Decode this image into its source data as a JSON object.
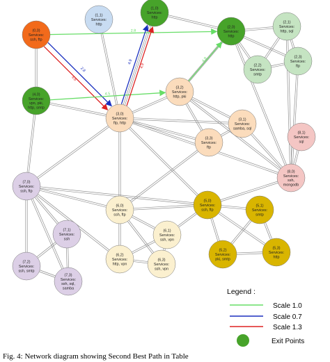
{
  "colors": {
    "red_group": "#f26a1b",
    "blue_group": "#c8dcf2",
    "green_exit": "#47a32a",
    "light_green_group": "#c5e4c2",
    "peach_group": "#fbdcbc",
    "pink_group": "#f4c6c4",
    "lavender_group": "#dccfe6",
    "cream_group": "#fbf0cf",
    "yellow_group": "#d9b500",
    "scale_1_0": "#66dd66",
    "scale_0_7": "#1a2fbf",
    "scale_1_3": "#dd2222",
    "edge": "#8f8f8f"
  },
  "nodes": [
    {
      "id": "0_0",
      "lines": [
        "(0,0)",
        "Services:",
        "ssh, ftp"
      ],
      "color": "red_group"
    },
    {
      "id": "1_1",
      "lines": [
        "(1,1)",
        "Services:",
        "http"
      ],
      "color": "blue_group"
    },
    {
      "id": "1_0",
      "lines": [
        "(1,0)",
        "Services:",
        "http"
      ],
      "color": "green_exit"
    },
    {
      "id": "2_0",
      "lines": [
        "(2,0)",
        "Services:",
        "http"
      ],
      "color": "green_exit"
    },
    {
      "id": "2_1",
      "lines": [
        "(2,1)",
        "Services:",
        "http, sql"
      ],
      "color": "light_green_group"
    },
    {
      "id": "2_2",
      "lines": [
        "(2,2)",
        "Services:",
        "smtp"
      ],
      "color": "light_green_group"
    },
    {
      "id": "2_3",
      "lines": [
        "(2,3)",
        "Services:",
        "ftp"
      ],
      "color": "light_green_group"
    },
    {
      "id": "4_0",
      "lines": [
        "(4,0)",
        "Services:",
        "vpn, pki,",
        "http, smtp"
      ],
      "color": "green_exit"
    },
    {
      "id": "3_2",
      "lines": [
        "(3,2)",
        "Services:",
        "http, pki"
      ],
      "color": "peach_group"
    },
    {
      "id": "3_0",
      "lines": [
        "(3,0)",
        "Services:",
        "ftp, http"
      ],
      "color": "peach_group"
    },
    {
      "id": "3_1",
      "lines": [
        "(3,1)",
        "Services:",
        "samba, sql"
      ],
      "color": "peach_group"
    },
    {
      "id": "3_3",
      "lines": [
        "(3,3)",
        "Services:",
        "ftp"
      ],
      "color": "peach_group"
    },
    {
      "id": "8_1",
      "lines": [
        "(8,1)",
        "Services:",
        "sql"
      ],
      "color": "pink_group"
    },
    {
      "id": "8_0",
      "lines": [
        "(8,0)",
        "Services:",
        "ssh,",
        "mongodb"
      ],
      "color": "pink_group"
    },
    {
      "id": "7_0",
      "lines": [
        "(7,0)",
        "Services:",
        "ssh, ftp"
      ],
      "color": "lavender_group"
    },
    {
      "id": "7_1",
      "lines": [
        "(7,1)",
        "Services:",
        "ssh"
      ],
      "color": "lavender_group"
    },
    {
      "id": "7_2",
      "lines": [
        "(7,2)",
        "Services:",
        "ssh, smtp"
      ],
      "color": "lavender_group"
    },
    {
      "id": "7_3",
      "lines": [
        "(7,3)",
        "Services:",
        "ssh, sql,",
        "samba"
      ],
      "color": "lavender_group"
    },
    {
      "id": "6_0",
      "lines": [
        "(6,0)",
        "Services:",
        "ssh, ftp"
      ],
      "color": "cream_group"
    },
    {
      "id": "6_1",
      "lines": [
        "(6,1)",
        "Services:",
        "ssh, vpn"
      ],
      "color": "cream_group"
    },
    {
      "id": "6_2",
      "lines": [
        "(6,2)",
        "Services:",
        "http, vpn"
      ],
      "color": "cream_group"
    },
    {
      "id": "6_3",
      "lines": [
        "(6,3)",
        "Services:",
        "ssh, vpn"
      ],
      "color": "cream_group"
    },
    {
      "id": "5_0",
      "lines": [
        "(5,0)",
        "Services:",
        "ssh, ftp"
      ],
      "color": "yellow_group"
    },
    {
      "id": "5_1",
      "lines": [
        "(5,1)",
        "Services:",
        "smtp"
      ],
      "color": "yellow_group"
    },
    {
      "id": "5_2",
      "lines": [
        "(5,2)",
        "Services:",
        "pki, smtp"
      ],
      "color": "yellow_group"
    },
    {
      "id": "5_3",
      "lines": [
        "(5,3)",
        "Services:",
        "http"
      ],
      "color": "yellow_group"
    }
  ],
  "edges": [
    [
      "0_0",
      "4_0"
    ],
    [
      "1_1",
      "3_0"
    ],
    [
      "1_0",
      "3_0"
    ],
    [
      "2_0",
      "1_0"
    ],
    [
      "2_0",
      "2_1"
    ],
    [
      "2_0",
      "2_2"
    ],
    [
      "2_0",
      "2_3"
    ],
    [
      "2_1",
      "2_3"
    ],
    [
      "2_2",
      "2_3"
    ],
    [
      "2_1",
      "2_2"
    ],
    [
      "2_0",
      "3_2"
    ],
    [
      "2_0",
      "8_0"
    ],
    [
      "2_1",
      "8_0"
    ],
    [
      "2_3",
      "8_0"
    ],
    [
      "4_0",
      "7_0"
    ],
    [
      "4_0",
      "3_0"
    ],
    [
      "3_0",
      "3_2"
    ],
    [
      "3_0",
      "3_1"
    ],
    [
      "3_0",
      "3_3"
    ],
    [
      "3_2",
      "3_1"
    ],
    [
      "3_2",
      "3_3"
    ],
    [
      "3_3",
      "3_1"
    ],
    [
      "3_2",
      "8_0"
    ],
    [
      "3_1",
      "8_0"
    ],
    [
      "8_1",
      "8_0"
    ],
    [
      "3_0",
      "8_0"
    ],
    [
      "3_0",
      "7_0"
    ],
    [
      "3_0",
      "6_0"
    ],
    [
      "3_0",
      "5_0"
    ],
    [
      "3_3",
      "6_0"
    ],
    [
      "7_0",
      "7_1"
    ],
    [
      "7_0",
      "7_2"
    ],
    [
      "7_0",
      "7_3"
    ],
    [
      "7_1",
      "7_2"
    ],
    [
      "7_1",
      "7_3"
    ],
    [
      "7_2",
      "7_3"
    ],
    [
      "7_0",
      "6_0"
    ],
    [
      "7_0",
      "5_0"
    ],
    [
      "7_0",
      "6_2"
    ],
    [
      "6_0",
      "6_1"
    ],
    [
      "6_0",
      "6_2"
    ],
    [
      "6_0",
      "6_3"
    ],
    [
      "6_1",
      "6_2"
    ],
    [
      "6_1",
      "6_3"
    ],
    [
      "6_2",
      "6_3"
    ],
    [
      "6_0",
      "5_0"
    ],
    [
      "5_0",
      "5_1"
    ],
    [
      "5_0",
      "5_2"
    ],
    [
      "5_0",
      "5_3"
    ],
    [
      "5_1",
      "5_2"
    ],
    [
      "5_1",
      "5_3"
    ],
    [
      "5_2",
      "5_3"
    ],
    [
      "5_0",
      "8_0"
    ],
    [
      "6_1",
      "5_0"
    ]
  ],
  "paths": [
    {
      "from": "0_0",
      "to": "2_0",
      "scale": "scale_1_0",
      "label": "2.8"
    },
    {
      "from": "0_0",
      "to": "3_0",
      "scale": "scale_0_7",
      "label": "2.8"
    },
    {
      "from": "0_0",
      "to": "3_0",
      "scale": "scale_1_3",
      "label": "4.6"
    },
    {
      "from": "4_0",
      "to": "3_2",
      "scale": "scale_1_0",
      "label": "4.5"
    },
    {
      "from": "3_0",
      "to": "1_0",
      "scale": "scale_1_3",
      "label": "4.9"
    },
    {
      "from": "3_0",
      "to": "1_0",
      "scale": "scale_0_7",
      "label": "4.9"
    },
    {
      "from": "3_2",
      "to": "2_0",
      "scale": "scale_1_0",
      "label": "4.9"
    }
  ],
  "legend": {
    "title": "Legend :",
    "items": [
      {
        "label": "Scale 1.0",
        "color": "scale_1_0"
      },
      {
        "label": "Scale 0.7",
        "color": "scale_0_7"
      },
      {
        "label": "Scale 1.3",
        "color": "scale_1_3"
      }
    ],
    "exit_label": "Exit Points"
  },
  "caption": "Fig. 4: Network diagram showing Second Best Path in Table"
}
